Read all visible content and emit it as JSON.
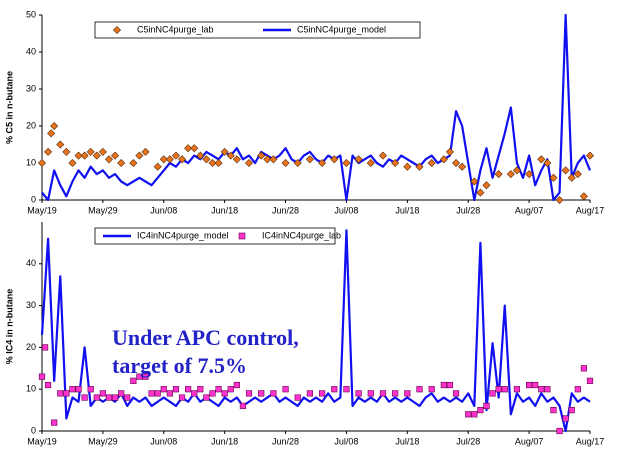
{
  "chart_data": [
    {
      "type": "line",
      "ylabel": "% C5 in n-butane",
      "xlim": [
        0,
        90
      ],
      "xticks": [
        {
          "value": 0,
          "label": "May/19"
        },
        {
          "value": 10,
          "label": "May/29"
        },
        {
          "value": 20,
          "label": "Jun/08"
        },
        {
          "value": 30,
          "label": "Jun/18"
        },
        {
          "value": 40,
          "label": "Jun/28"
        },
        {
          "value": 50,
          "label": "Jul/08"
        },
        {
          "value": 60,
          "label": "Jul/18"
        },
        {
          "value": 70,
          "label": "Jul/28"
        },
        {
          "value": 80,
          "label": "Aug/07"
        },
        {
          "value": 90,
          "label": "Aug/17"
        }
      ],
      "ylim": [
        0,
        50
      ],
      "yticks": [
        0,
        10,
        20,
        30,
        40,
        50
      ],
      "grid": false,
      "legend": "top",
      "series": [
        {
          "name": "C5inNC4purge_lab",
          "color": "#e8731e",
          "marker": "diamond",
          "x": [
            0,
            1,
            1.5,
            2,
            3,
            4,
            5,
            6,
            7,
            8,
            9,
            10,
            11,
            12,
            13,
            15,
            16,
            17,
            19,
            20,
            21,
            22,
            23,
            24,
            25,
            26,
            27,
            28,
            29,
            30,
            31,
            32,
            34,
            36,
            37,
            38,
            40,
            42,
            44,
            46,
            48,
            50,
            52,
            54,
            56,
            58,
            60,
            62,
            64,
            66,
            67,
            68,
            69,
            71,
            72,
            73,
            75,
            77,
            78,
            80,
            82,
            83,
            84,
            85,
            86,
            87,
            88,
            89,
            90
          ],
          "values": [
            10,
            13,
            18,
            20,
            15,
            13,
            10,
            12,
            12,
            13,
            12,
            13,
            11,
            12,
            10,
            10,
            12,
            13,
            9,
            11,
            11,
            12,
            11,
            14,
            14,
            12,
            11,
            10,
            10,
            13,
            12,
            11,
            10,
            12,
            11,
            11,
            10,
            10,
            11,
            10,
            11,
            10,
            11,
            10,
            12,
            10,
            9,
            9,
            10,
            11,
            13,
            10,
            9,
            5,
            2,
            4,
            7,
            7,
            8,
            7,
            11,
            10,
            6,
            0,
            8,
            6,
            7,
            1,
            12
          ]
        },
        {
          "name": "C5inNC4purge_model",
          "color": "#1010f0",
          "marker": "line",
          "x": [
            0,
            1,
            2,
            3,
            4,
            5,
            6,
            7,
            8,
            9,
            10,
            11,
            12,
            13,
            14,
            15,
            16,
            17,
            18,
            19,
            20,
            21,
            22,
            23,
            24,
            25,
            26,
            27,
            28,
            29,
            30,
            31,
            32,
            33,
            34,
            35,
            36,
            37,
            38,
            39,
            40,
            41,
            42,
            43,
            44,
            45,
            46,
            47,
            48,
            49,
            50,
            51,
            52,
            53,
            54,
            55,
            56,
            57,
            58,
            59,
            60,
            61,
            62,
            63,
            64,
            65,
            66,
            67,
            68,
            69,
            70,
            71,
            72,
            73,
            74,
            75,
            76,
            77,
            78,
            79,
            80,
            81,
            82,
            83,
            84,
            85,
            86,
            87,
            88,
            89,
            90
          ],
          "values": [
            2,
            0,
            8,
            4,
            1,
            5,
            8,
            6,
            9,
            7,
            8,
            6,
            7,
            5,
            4,
            5,
            6,
            5,
            4,
            6,
            8,
            10,
            9,
            11,
            10,
            12,
            11,
            13,
            12,
            11,
            13,
            12,
            14,
            11,
            12,
            10,
            13,
            12,
            11,
            12,
            14,
            11,
            10,
            12,
            13,
            11,
            10,
            12,
            11,
            12,
            0,
            12,
            10,
            11,
            12,
            10,
            9,
            11,
            10,
            12,
            11,
            10,
            9,
            11,
            12,
            10,
            11,
            12,
            24,
            20,
            10,
            0,
            8,
            14,
            6,
            12,
            18,
            25,
            10,
            6,
            12,
            4,
            8,
            11,
            0,
            2,
            50,
            6,
            10,
            12,
            8
          ]
        }
      ]
    },
    {
      "type": "line",
      "ylabel": "% IC4 in n-butane",
      "annotation": [
        "Under APC control,",
        "target of 7.5%"
      ],
      "xlim": [
        0,
        90
      ],
      "xticks": [
        {
          "value": 0,
          "label": "May/19"
        },
        {
          "value": 10,
          "label": "May/29"
        },
        {
          "value": 20,
          "label": "Jun/08"
        },
        {
          "value": 30,
          "label": "Jun/18"
        },
        {
          "value": 40,
          "label": "Jun/28"
        },
        {
          "value": 50,
          "label": "Jul/08"
        },
        {
          "value": 60,
          "label": "Jul/18"
        },
        {
          "value": 70,
          "label": "Jul/28"
        },
        {
          "value": 80,
          "label": "Aug/07"
        },
        {
          "value": 90,
          "label": "Aug/17"
        }
      ],
      "ylim": [
        0,
        50
      ],
      "yticks": [
        0,
        10,
        20,
        30,
        40
      ],
      "grid": false,
      "legend": "top",
      "series": [
        {
          "name": "IC4inNC4purge_model",
          "color": "#1010f0",
          "marker": "line",
          "x": [
            0,
            1,
            2,
            3,
            4,
            5,
            6,
            7,
            8,
            9,
            10,
            11,
            12,
            13,
            14,
            15,
            16,
            17,
            18,
            19,
            20,
            21,
            22,
            23,
            24,
            25,
            26,
            27,
            28,
            29,
            30,
            31,
            32,
            33,
            34,
            35,
            36,
            37,
            38,
            39,
            40,
            41,
            42,
            43,
            44,
            45,
            46,
            47,
            48,
            49,
            50,
            51,
            52,
            53,
            54,
            55,
            56,
            57,
            58,
            59,
            60,
            61,
            62,
            63,
            64,
            65,
            66,
            67,
            68,
            69,
            70,
            71,
            72,
            73,
            74,
            75,
            76,
            77,
            78,
            79,
            80,
            81,
            82,
            83,
            84,
            85,
            86,
            87,
            88,
            89,
            90
          ],
          "values": [
            23,
            46,
            12,
            37,
            3,
            8,
            7,
            20,
            6,
            8,
            7,
            8,
            7,
            9,
            6,
            8,
            7,
            8,
            6,
            7,
            8,
            7,
            6,
            8,
            7,
            9,
            7,
            8,
            7,
            6,
            8,
            7,
            8,
            6,
            7,
            8,
            7,
            8,
            9,
            7,
            8,
            7,
            6,
            8,
            7,
            8,
            7,
            9,
            7,
            8,
            48,
            6,
            8,
            7,
            8,
            7,
            9,
            7,
            8,
            7,
            8,
            7,
            6,
            8,
            9,
            7,
            8,
            7,
            8,
            7,
            9,
            6,
            45,
            5,
            21,
            8,
            30,
            4,
            9,
            7,
            8,
            6,
            9,
            7,
            8,
            6,
            0,
            9,
            7,
            8,
            7
          ]
        },
        {
          "name": "IC4inNC4purge_lab",
          "color": "#ff33cc",
          "marker": "square",
          "x": [
            0,
            0.5,
            1,
            2,
            3,
            4,
            5,
            6,
            7,
            8,
            9,
            10,
            11,
            12,
            13,
            14,
            15,
            16,
            17,
            18,
            19,
            20,
            21,
            22,
            23,
            24,
            25,
            26,
            27,
            28,
            29,
            30,
            31,
            32,
            33,
            34,
            36,
            38,
            40,
            42,
            44,
            46,
            48,
            50,
            52,
            54,
            56,
            58,
            60,
            62,
            64,
            66,
            67,
            68,
            70,
            71,
            72,
            73,
            74,
            75,
            76,
            78,
            80,
            81,
            82,
            83,
            84,
            85,
            86,
            87,
            88,
            89,
            90
          ],
          "values": [
            13,
            20,
            11,
            2,
            9,
            9,
            10,
            10,
            8,
            10,
            8,
            9,
            8,
            8,
            9,
            8,
            12,
            13,
            13,
            9,
            9,
            10,
            9,
            10,
            8,
            10,
            9,
            10,
            8,
            9,
            10,
            9,
            10,
            11,
            6,
            9,
            9,
            9,
            10,
            8,
            9,
            9,
            10,
            10,
            9,
            9,
            9,
            9,
            9,
            10,
            10,
            11,
            11,
            9,
            4,
            4,
            5,
            6,
            9,
            10,
            10,
            10,
            11,
            11,
            10,
            10,
            5,
            0,
            3,
            5,
            10,
            15,
            12
          ]
        }
      ]
    }
  ]
}
